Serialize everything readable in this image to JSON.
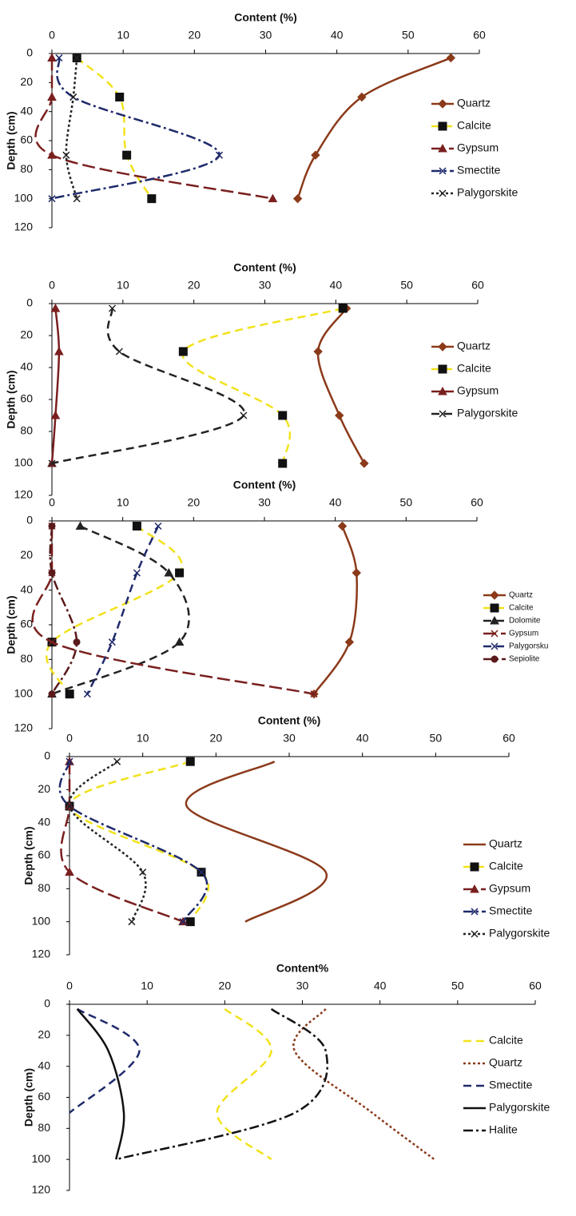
{
  "chart_data": [
    {
      "type": "line",
      "x_label": "Content (%)",
      "y_label": "Depth (cm)",
      "xlim": [
        0,
        60
      ],
      "xticks": [
        0,
        10,
        20,
        30,
        40,
        50,
        60
      ],
      "ylim": [
        0,
        120
      ],
      "yticks": [
        0,
        20,
        40,
        60,
        80,
        100,
        120
      ],
      "y_inverted": true,
      "legend": "right",
      "depths": [
        3,
        30,
        70,
        100
      ],
      "series": [
        {
          "name": "Quartz",
          "color": "#8b3a1a",
          "marker": "diamond",
          "linestyle": "solid",
          "values": [
            56,
            43.5,
            37,
            34.5
          ]
        },
        {
          "name": "Calcite",
          "color": "#f2e21c",
          "marker": "square",
          "linestyle": "dashed",
          "values": [
            3.5,
            9.5,
            10.5,
            14
          ]
        },
        {
          "name": "Gypsum",
          "color": "#7a1f1f",
          "marker": "triangle",
          "linestyle": "longdash",
          "values": [
            0,
            0,
            0,
            31
          ]
        },
        {
          "name": "Smectite",
          "color": "#1f2a6b",
          "marker": "x",
          "linestyle": "dashdot",
          "values": [
            1,
            3,
            23.5,
            0
          ]
        },
        {
          "name": "Palygorskite",
          "color": "#222222",
          "marker": "x",
          "linestyle": "dotted",
          "values": [
            3.5,
            3,
            2,
            3.5
          ]
        }
      ]
    },
    {
      "type": "line",
      "x_label": "Content (%)",
      "y_label": "Depth (cm)",
      "xlim": [
        0,
        60
      ],
      "xticks": [
        0,
        10,
        20,
        30,
        40,
        50,
        60
      ],
      "ylim": [
        0,
        120
      ],
      "yticks": [
        0,
        20,
        40,
        60,
        80,
        100,
        120
      ],
      "y_inverted": true,
      "legend": "right",
      "depths": [
        3,
        30,
        70,
        100
      ],
      "series": [
        {
          "name": "Quartz",
          "color": "#8b3a1a",
          "marker": "diamond",
          "linestyle": "solid",
          "values": [
            41.5,
            37.5,
            40.5,
            44
          ]
        },
        {
          "name": "Calcite",
          "color": "#f2e21c",
          "marker": "square",
          "linestyle": "dashed",
          "values": [
            41,
            18.5,
            32.5,
            32.5
          ]
        },
        {
          "name": "Gypsum",
          "color": "#7a1f1f",
          "marker": "triangle",
          "linestyle": "solid",
          "values": [
            0.5,
            1,
            0.5,
            0
          ]
        },
        {
          "name": "Palygorskite",
          "color": "#222222",
          "marker": "x",
          "linestyle": "dashed",
          "values": [
            8.5,
            9.5,
            27,
            0
          ]
        }
      ]
    },
    {
      "type": "line",
      "x_label": "Content (%)",
      "y_label": "Depth (cm)",
      "xlim": [
        0,
        60
      ],
      "xticks": [
        0,
        10,
        20,
        30,
        40,
        50,
        60
      ],
      "ylim": [
        0,
        120
      ],
      "yticks": [
        0,
        20,
        40,
        60,
        80,
        100,
        120
      ],
      "y_inverted": true,
      "legend": "right",
      "depths": [
        3,
        30,
        70,
        100
      ],
      "series": [
        {
          "name": "Quartz",
          "color": "#8b3a1a",
          "marker": "diamond",
          "linestyle": "solid",
          "values": [
            41,
            43,
            42,
            37
          ]
        },
        {
          "name": "Calcite",
          "color": "#f2e21c",
          "marker": "square",
          "linestyle": "dashed",
          "values": [
            12,
            18,
            0,
            2.5
          ]
        },
        {
          "name": "Dolomite",
          "color": "#222222",
          "marker": "triangle",
          "linestyle": "dashed",
          "values": [
            4,
            16.5,
            18,
            0
          ]
        },
        {
          "name": "Gypsum",
          "color": "#7a1f1f",
          "marker": "x",
          "linestyle": "longdash",
          "values": [
            0,
            0,
            0,
            37
          ]
        },
        {
          "name": "Palygorsku",
          "color": "#1f2a6b",
          "marker": "x",
          "linestyle": "dashed",
          "values": [
            15,
            12,
            8.5,
            5
          ]
        },
        {
          "name": "Sepiolite",
          "color": "#5a1a1a",
          "marker": "circle",
          "linestyle": "dashdot",
          "values": [
            0,
            0,
            3.5,
            0
          ]
        }
      ]
    },
    {
      "type": "line",
      "x_label": "Content (%)",
      "y_label": "Depth (cm)",
      "xlim": [
        0,
        60
      ],
      "xticks": [
        0,
        10,
        20,
        30,
        40,
        50,
        60
      ],
      "ylim": [
        0,
        120
      ],
      "yticks": [
        0,
        20,
        40,
        60,
        80,
        100,
        120
      ],
      "y_inverted": true,
      "legend": "right",
      "depths": [
        3,
        30,
        70,
        100
      ],
      "series": [
        {
          "name": "Quartz",
          "color": "#8b3a1a",
          "marker": "none",
          "linestyle": "solid",
          "values": [
            28,
            16,
            35,
            24
          ]
        },
        {
          "name": "Calcite",
          "color": "#f2e21c",
          "marker": "square",
          "linestyle": "dashed",
          "values": [
            16.5,
            0,
            18,
            16.5
          ]
        },
        {
          "name": "Gypsum",
          "color": "#7a1f1f",
          "marker": "triangle",
          "linestyle": "longdash",
          "values": [
            0,
            0,
            0,
            15.5
          ]
        },
        {
          "name": "Smectite",
          "color": "#1f2a6b",
          "marker": "x",
          "linestyle": "dashdot",
          "values": [
            0,
            0,
            18,
            15.5
          ]
        },
        {
          "name": "Palygorskite",
          "color": "#222222",
          "marker": "x",
          "linestyle": "dotted",
          "values": [
            6.5,
            0,
            10,
            8.5
          ]
        }
      ]
    },
    {
      "type": "line",
      "x_label": "Content%",
      "y_label": "Depth (cm)",
      "xlim": [
        0,
        60
      ],
      "xticks": [
        0,
        10,
        20,
        30,
        40,
        50,
        60
      ],
      "ylim": [
        0,
        120
      ],
      "yticks": [
        0,
        20,
        40,
        60,
        80,
        100,
        120
      ],
      "y_inverted": true,
      "legend": "right",
      "depths": [
        3,
        30,
        70,
        100
      ],
      "series": [
        {
          "name": "Calcite",
          "color": "#f2e21c",
          "marker": "none",
          "linestyle": "dashed",
          "values": [
            20,
            26,
            19,
            26
          ]
        },
        {
          "name": "Quartz",
          "color": "#8b3a1a",
          "marker": "none",
          "linestyle": "dotted",
          "values": [
            33,
            29,
            39,
            47
          ]
        },
        {
          "name": "Smectite",
          "color": "#1f2a6b",
          "marker": "none",
          "linestyle": "dashed",
          "values": [
            1,
            9,
            0,
            null
          ]
        },
        {
          "name": "Palygorskite",
          "color": "#111111",
          "marker": "none",
          "linestyle": "solid",
          "values": [
            1,
            5,
            7,
            6
          ]
        },
        {
          "name": "Halite",
          "color": "#111111",
          "marker": "none",
          "linestyle": "dashdot",
          "values": [
            26,
            33,
            29,
            6
          ]
        }
      ]
    }
  ]
}
